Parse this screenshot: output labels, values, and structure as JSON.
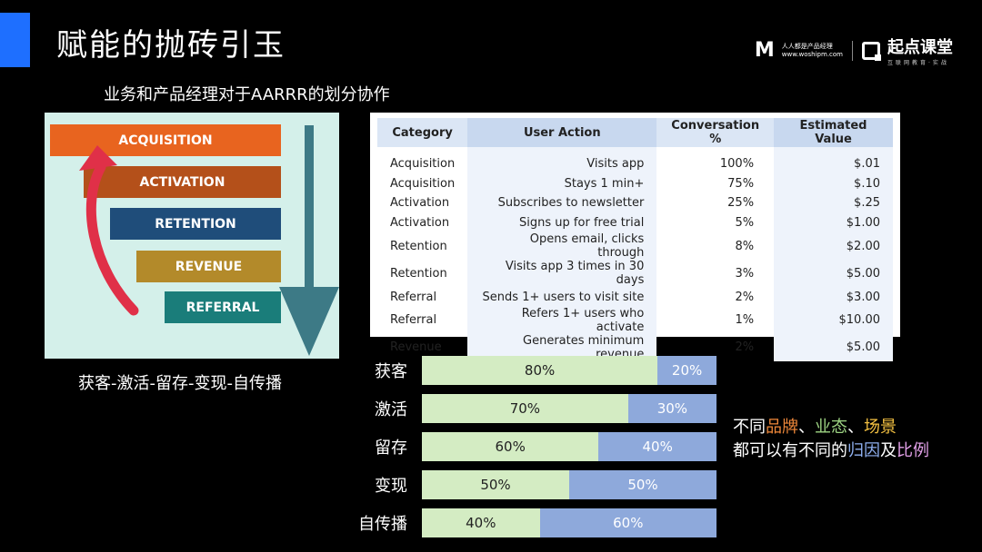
{
  "header": {
    "title": "赋能的抛砖引玉",
    "logo_text_1": "人人都是产品经理",
    "logo_text_2": "www.woshipm.com",
    "logo_brand": "起点课堂",
    "logo_brand_sub": "互联网教育·实战",
    "accent_color": "#1e6fff"
  },
  "subtitle": "业务和产品经理对于AARRR的划分协作",
  "funnel": {
    "stages": [
      {
        "label": "ACQUISITION",
        "color": "#e8641f"
      },
      {
        "label": "ACTIVATION",
        "color": "#b4501a"
      },
      {
        "label": "RETENTION",
        "color": "#1f4d7a"
      },
      {
        "label": "REVENUE",
        "color": "#b38a2a"
      },
      {
        "label": "REFERRAL",
        "color": "#1a7d7a"
      }
    ],
    "up_arrow_color": "#e03048",
    "down_arrow_color": "#3d7a86",
    "caption": "获客-激活-留存-变现-自传播"
  },
  "table": {
    "headers": [
      "Category",
      "User Action",
      "Conversation %",
      "Estimated Value"
    ],
    "rows": [
      [
        "Acquisition",
        "Visits app",
        "100%",
        "$.01"
      ],
      [
        "Acquisition",
        "Stays 1 min+",
        "75%",
        "$.10"
      ],
      [
        "Activation",
        "Subscribes to newsletter",
        "25%",
        "$.25"
      ],
      [
        "Activation",
        "Signs up for free trial",
        "5%",
        "$1.00"
      ],
      [
        "Retention",
        "Opens email, clicks through",
        "8%",
        "$2.00"
      ],
      [
        "Retention",
        "Visits app 3 times in 30 days",
        "3%",
        "$5.00"
      ],
      [
        "Referral",
        "Sends 1+ users to visit site",
        "2%",
        "$3.00"
      ],
      [
        "Referral",
        "Refers 1+ users who activate",
        "1%",
        "$10.00"
      ],
      [
        "Revenue",
        "Generates minimum revenue",
        "2%",
        "$5.00"
      ]
    ]
  },
  "splits": [
    {
      "label": "获客",
      "a": 80,
      "b": 20,
      "a_text": "80%",
      "b_text": "20%"
    },
    {
      "label": "激活",
      "a": 70,
      "b": 30,
      "a_text": "70%",
      "b_text": "30%"
    },
    {
      "label": "留存",
      "a": 60,
      "b": 40,
      "a_text": "60%",
      "b_text": "40%"
    },
    {
      "label": "变现",
      "a": 50,
      "b": 50,
      "a_text": "50%",
      "b_text": "50%"
    },
    {
      "label": "自传播",
      "a": 40,
      "b": 60,
      "a_text": "40%",
      "b_text": "60%"
    }
  ],
  "split_colors": {
    "a": "#d4ecc3",
    "b": "#8ea9db"
  },
  "note": {
    "l1_a": "不同",
    "l1_b": "品牌",
    "l1_c": "、",
    "l1_d": "业态",
    "l1_e": "、",
    "l1_f": "场景",
    "l2_a": "都可以有不同的",
    "l2_b": "归因",
    "l2_c": "及",
    "l2_d": "比例"
  }
}
